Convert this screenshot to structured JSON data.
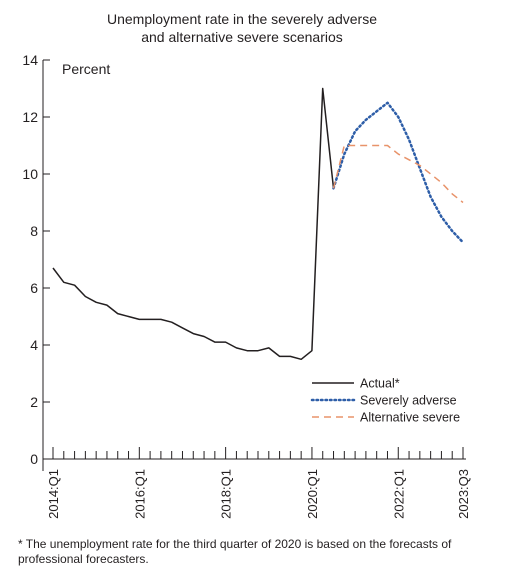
{
  "chart_data": {
    "type": "line",
    "title_lines": [
      "Unemployment rate in the severely adverse",
      "and alternative severe scenarios"
    ],
    "ylabel": "Percent",
    "ylim": [
      0,
      14
    ],
    "yticks": [
      0,
      2,
      4,
      6,
      8,
      10,
      12,
      14
    ],
    "x_tick_labels": [
      "2014:Q1",
      "2016:Q1",
      "2018:Q1",
      "2020:Q1",
      "2022:Q1",
      "2023:Q3"
    ],
    "x_tick_label_quarters": [
      "2014Q1",
      "2016Q1",
      "2018Q1",
      "2020Q1",
      "2022Q1",
      "2023Q3"
    ],
    "x_quarters": [
      "2014Q1",
      "2014Q2",
      "2014Q3",
      "2014Q4",
      "2015Q1",
      "2015Q2",
      "2015Q3",
      "2015Q4",
      "2016Q1",
      "2016Q2",
      "2016Q3",
      "2016Q4",
      "2017Q1",
      "2017Q2",
      "2017Q3",
      "2017Q4",
      "2018Q1",
      "2018Q2",
      "2018Q3",
      "2018Q4",
      "2019Q1",
      "2019Q2",
      "2019Q3",
      "2019Q4",
      "2020Q1",
      "2020Q2",
      "2020Q3",
      "2020Q4",
      "2021Q1",
      "2021Q2",
      "2021Q3",
      "2021Q4",
      "2022Q1",
      "2022Q2",
      "2022Q3",
      "2022Q4",
      "2023Q1",
      "2023Q2",
      "2023Q3"
    ],
    "legend_position": "lower-right",
    "series": [
      {
        "name": "Actual*",
        "color": "#231f20",
        "style": "solid",
        "x": [
          "2014Q1",
          "2014Q2",
          "2014Q3",
          "2014Q4",
          "2015Q1",
          "2015Q2",
          "2015Q3",
          "2015Q4",
          "2016Q1",
          "2016Q2",
          "2016Q3",
          "2016Q4",
          "2017Q1",
          "2017Q2",
          "2017Q3",
          "2017Q4",
          "2018Q1",
          "2018Q2",
          "2018Q3",
          "2018Q4",
          "2019Q1",
          "2019Q2",
          "2019Q3",
          "2019Q4",
          "2020Q1",
          "2020Q2",
          "2020Q3"
        ],
        "values": [
          6.7,
          6.2,
          6.1,
          5.7,
          5.5,
          5.4,
          5.1,
          5.0,
          4.9,
          4.9,
          4.9,
          4.8,
          4.6,
          4.4,
          4.3,
          4.1,
          4.1,
          3.9,
          3.8,
          3.8,
          3.9,
          3.6,
          3.6,
          3.5,
          3.8,
          13.0,
          9.5
        ]
      },
      {
        "name": "Severely adverse",
        "color": "#2e5ea8",
        "style": "dotted",
        "x": [
          "2020Q3",
          "2020Q4",
          "2021Q1",
          "2021Q2",
          "2021Q3",
          "2021Q4",
          "2022Q1",
          "2022Q2",
          "2022Q3",
          "2022Q4",
          "2023Q1",
          "2023Q2",
          "2023Q3"
        ],
        "values": [
          9.5,
          10.7,
          11.5,
          11.9,
          12.2,
          12.5,
          12.0,
          11.2,
          10.2,
          9.2,
          8.5,
          8.0,
          7.6
        ]
      },
      {
        "name": "Alternative severe",
        "color": "#e8936a",
        "style": "dashed",
        "x": [
          "2020Q3",
          "2020Q4",
          "2021Q1",
          "2021Q2",
          "2021Q3",
          "2021Q4",
          "2022Q1",
          "2022Q2",
          "2022Q3",
          "2022Q4",
          "2023Q1",
          "2023Q2",
          "2023Q3"
        ],
        "values": [
          9.5,
          11.0,
          11.0,
          11.0,
          11.0,
          11.0,
          10.7,
          10.5,
          10.3,
          10.0,
          9.7,
          9.3,
          9.0
        ]
      }
    ]
  },
  "footnote": "* The unemployment rate for the third quarter of 2020 is based on the forecasts of professional forecasters."
}
